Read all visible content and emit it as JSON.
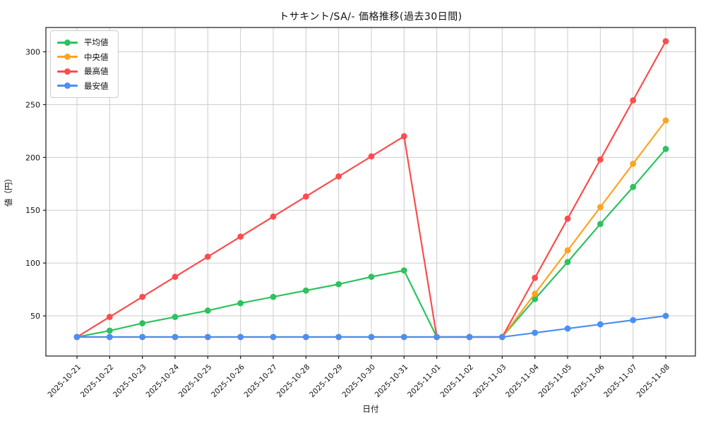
{
  "chart_data": {
    "type": "line",
    "title": "トサキント/SA/- 価格推移(過去30日間)",
    "xlabel": "日付",
    "ylabel": "値（円）",
    "x": [
      "2025-10-21",
      "2025-10-22",
      "2025-10-23",
      "2025-10-24",
      "2025-10-25",
      "2025-10-26",
      "2025-10-27",
      "2025-10-28",
      "2025-10-29",
      "2025-10-30",
      "2025-10-31",
      "2025-11-01",
      "2025-11-02",
      "2025-11-03",
      "2025-11-04",
      "2025-11-05",
      "2025-11-06",
      "2025-11-07",
      "2025-11-08"
    ],
    "series": [
      {
        "name": "平均値",
        "color": "#2dc25e",
        "values": [
          30,
          36,
          43,
          49,
          55,
          62,
          68,
          74,
          80,
          87,
          93,
          30,
          30,
          30,
          66,
          101,
          137,
          172,
          208
        ]
      },
      {
        "name": "中央値",
        "color": "#ffa321",
        "values": [
          30,
          30,
          30,
          30,
          30,
          30,
          30,
          30,
          30,
          30,
          30,
          30,
          30,
          30,
          71,
          112,
          153,
          194,
          235
        ]
      },
      {
        "name": "最高値",
        "color": "#fb4d4d",
        "values": [
          30,
          49,
          68,
          87,
          106,
          125,
          144,
          163,
          182,
          201,
          220,
          30,
          30,
          30,
          86,
          142,
          198,
          254,
          310
        ]
      },
      {
        "name": "最安値",
        "color": "#4b8ff2",
        "values": [
          30,
          30,
          30,
          30,
          30,
          30,
          30,
          30,
          30,
          30,
          30,
          30,
          30,
          30,
          34,
          38,
          42,
          46,
          50
        ]
      }
    ],
    "yticks": [
      50,
      100,
      150,
      200,
      250,
      300
    ],
    "ylim": [
      12,
      323
    ],
    "grid": true,
    "grid_color": "#cccccc",
    "spine_color": "#1a1a1a",
    "background": "#ffffff",
    "legend_position": "upper-left"
  }
}
